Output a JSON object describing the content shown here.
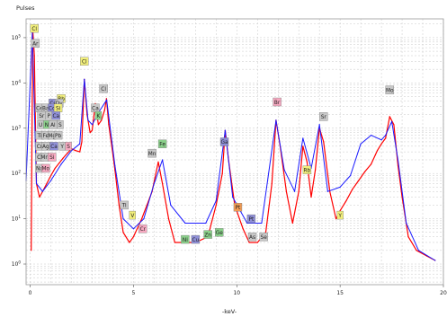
{
  "window": {
    "plot_frame_color": "#9a9a9a",
    "grid_color": "#c8c8c8"
  },
  "chart_data": {
    "type": "line",
    "title": "",
    "ylabel": "Pulses",
    "xlabel": "-keV-",
    "y_scale": "log",
    "xlim": [
      -0.2,
      20
    ],
    "ylim": [
      0.35,
      260000
    ],
    "grid": true,
    "x_ticks": [
      {
        "value": 0,
        "label": "0"
      },
      {
        "value": 5,
        "label": "5"
      },
      {
        "value": 10,
        "label": "10"
      },
      {
        "value": 15,
        "label": "15"
      },
      {
        "value": 20,
        "label": "20"
      }
    ],
    "y_ticks": [
      {
        "value": 1,
        "label": "10^0"
      },
      {
        "value": 10,
        "label": "10^1"
      },
      {
        "value": 100,
        "label": "10^2"
      },
      {
        "value": 1000,
        "label": "10^3"
      },
      {
        "value": 10000,
        "label": "10^4"
      },
      {
        "value": 100000,
        "label": "10^5"
      }
    ],
    "series": [
      {
        "color": "#ff0000",
        "x": [
          0.05,
          0.12,
          0.2,
          0.3,
          0.45,
          0.6,
          0.8,
          1.0,
          1.2,
          1.4,
          1.6,
          1.8,
          2.0,
          2.2,
          2.4,
          2.5,
          2.62,
          2.75,
          2.9,
          3.0,
          3.15,
          3.3,
          3.45,
          3.6,
          3.69,
          3.8,
          3.95,
          4.1,
          4.3,
          4.5,
          4.8,
          5.0,
          5.4,
          5.8,
          5.9,
          6.2,
          6.4,
          6.7,
          7.0,
          7.5,
          8.0,
          8.6,
          9.0,
          9.3,
          9.44,
          9.6,
          9.9,
          10.3,
          10.6,
          11.0,
          11.4,
          11.7,
          11.9,
          12.1,
          12.4,
          12.7,
          13.0,
          13.2,
          13.4,
          13.6,
          13.8,
          14.0,
          14.2,
          14.5,
          14.8,
          15.0,
          15.3,
          15.6,
          15.9,
          16.2,
          16.5,
          16.8,
          17.0,
          17.2,
          17.4,
          17.6,
          17.8,
          18.0,
          18.3,
          18.7,
          19.2,
          19.6
        ],
        "y": [
          2,
          150000,
          40000,
          60,
          30,
          40,
          60,
          90,
          130,
          170,
          220,
          280,
          350,
          320,
          300,
          500,
          12000,
          2000,
          800,
          900,
          3500,
          1200,
          1500,
          2500,
          4500,
          1200,
          400,
          120,
          20,
          5,
          3,
          4,
          10,
          30,
          40,
          180,
          60,
          10,
          3,
          3,
          3,
          4,
          20,
          100,
          900,
          200,
          20,
          6,
          3,
          3,
          5,
          60,
          1500,
          400,
          40,
          8,
          40,
          400,
          180,
          30,
          120,
          1000,
          500,
          40,
          10,
          15,
          25,
          45,
          70,
          110,
          160,
          320,
          450,
          600,
          1800,
          1200,
          150,
          30,
          4,
          2,
          1.5,
          1.2
        ]
      },
      {
        "color": "#1a1aff",
        "x": [
          -0.2,
          0.1,
          0.3,
          0.6,
          1.0,
          1.5,
          2.0,
          2.4,
          2.62,
          2.8,
          3.0,
          3.3,
          3.7,
          4.1,
          4.5,
          5.0,
          5.5,
          6.0,
          6.4,
          6.8,
          7.5,
          8.5,
          9.0,
          9.44,
          9.8,
          10.5,
          11.2,
          11.9,
          12.3,
          12.8,
          13.2,
          13.6,
          14.0,
          14.4,
          15.0,
          15.5,
          16.0,
          16.5,
          17.0,
          17.2,
          17.5,
          17.8,
          18.2,
          18.8,
          19.6
        ],
        "y": [
          70,
          130000,
          60,
          40,
          70,
          160,
          320,
          450,
          12000,
          1500,
          1200,
          2200,
          4200,
          150,
          10,
          6,
          10,
          60,
          200,
          20,
          8,
          8,
          25,
          900,
          30,
          8,
          8,
          1500,
          120,
          40,
          600,
          130,
          1200,
          40,
          50,
          90,
          450,
          700,
          550,
          700,
          1400,
          200,
          8,
          2,
          1.2
        ]
      }
    ],
    "annotations": [
      {
        "label": "Cl",
        "x": 0.2,
        "y": 160000,
        "color": "#f2ef7a"
      },
      {
        "label": "Ar",
        "x": 0.25,
        "y": 75000,
        "color": "#c8c8c8"
      },
      {
        "label": "Rb",
        "x": 1.5,
        "y": 4500,
        "color": "#f2ef7a"
      },
      {
        "label": "Cs",
        "x": 1.1,
        "y": 3600,
        "color": "#8f8fd8"
      },
      {
        "label": "Dy",
        "x": 1.4,
        "y": 3600,
        "color": "#c8c8c8"
      },
      {
        "label": "Ce",
        "x": 0.45,
        "y": 2800,
        "color": "#c8c8c8"
      },
      {
        "label": "Ba",
        "x": 0.75,
        "y": 2800,
        "color": "#c8c8c8"
      },
      {
        "label": "Co",
        "x": 1.05,
        "y": 2800,
        "color": "#8f8fd8"
      },
      {
        "label": "Si",
        "x": 1.35,
        "y": 2800,
        "color": "#f2ef7a"
      },
      {
        "label": "Sr",
        "x": 0.55,
        "y": 1900,
        "color": "#c8c8c8"
      },
      {
        "label": "P",
        "x": 0.9,
        "y": 1900,
        "color": "#c8c8c8"
      },
      {
        "label": "Ca",
        "x": 1.25,
        "y": 1900,
        "color": "#8f8fd8"
      },
      {
        "label": "U",
        "x": 0.5,
        "y": 1200,
        "color": "#c8c8c8"
      },
      {
        "label": "N",
        "x": 0.8,
        "y": 1200,
        "color": "#8ad08a"
      },
      {
        "label": "Al",
        "x": 1.1,
        "y": 1200,
        "color": "#c8c8c8"
      },
      {
        "label": "S",
        "x": 1.45,
        "y": 1200,
        "color": "#c8c8c8"
      },
      {
        "label": "Ti",
        "x": 0.45,
        "y": 700,
        "color": "#c8c8c8"
      },
      {
        "label": "Fe",
        "x": 0.75,
        "y": 700,
        "color": "#c8c8c8"
      },
      {
        "label": "Mg",
        "x": 1.05,
        "y": 700,
        "color": "#c8c8c8"
      },
      {
        "label": "Pb",
        "x": 1.35,
        "y": 700,
        "color": "#c8c8c8"
      },
      {
        "label": "Cr",
        "x": 0.45,
        "y": 400,
        "color": "#c8c8c8"
      },
      {
        "label": "Ag",
        "x": 0.75,
        "y": 400,
        "color": "#c8c8c8"
      },
      {
        "label": "Ca",
        "x": 1.15,
        "y": 400,
        "color": "#8f8fd8"
      },
      {
        "label": "Y",
        "x": 1.55,
        "y": 400,
        "color": "#c8c8c8"
      },
      {
        "label": "S",
        "x": 1.85,
        "y": 400,
        "color": "#f6a8c0"
      },
      {
        "label": "Cl",
        "x": 0.45,
        "y": 230,
        "color": "#c8c8c8"
      },
      {
        "label": "Mn",
        "x": 0.7,
        "y": 230,
        "color": "#c8c8c8"
      },
      {
        "label": "Si",
        "x": 1.05,
        "y": 230,
        "color": "#f6a8c0"
      },
      {
        "label": "Na",
        "x": 0.45,
        "y": 130,
        "color": "#c8c8c8"
      },
      {
        "label": "Mo",
        "x": 0.75,
        "y": 130,
        "color": "#f6a8c0"
      },
      {
        "label": "Cl",
        "x": 2.62,
        "y": 30000,
        "color": "#f2ef7a"
      },
      {
        "label": "Cl",
        "x": 3.55,
        "y": 7500,
        "color": "#c8c8c8"
      },
      {
        "label": "Ca",
        "x": 3.15,
        "y": 2800,
        "color": "#c8c8c8"
      },
      {
        "label": "K",
        "x": 3.3,
        "y": 1900,
        "color": "#8ad08a"
      },
      {
        "label": "Ti",
        "x": 4.55,
        "y": 20,
        "color": "#c8c8c8"
      },
      {
        "label": "V",
        "x": 4.95,
        "y": 12,
        "color": "#f2ef7a"
      },
      {
        "label": "Cr",
        "x": 5.45,
        "y": 6,
        "color": "#f6a8c0"
      },
      {
        "label": "Mn",
        "x": 5.9,
        "y": 280,
        "color": "#c8c8c8"
      },
      {
        "label": "Fe",
        "x": 6.4,
        "y": 450,
        "color": "#8ad08a"
      },
      {
        "label": "Ni",
        "x": 7.5,
        "y": 3.5,
        "color": "#8ad08a"
      },
      {
        "label": "Cu",
        "x": 8.0,
        "y": 3.5,
        "color": "#8f8fd8"
      },
      {
        "label": "Zn",
        "x": 8.6,
        "y": 4.5,
        "color": "#8ad08a"
      },
      {
        "label": "Ga",
        "x": 9.4,
        "y": 500,
        "color": "#8f8fd8"
      },
      {
        "label": "Ge",
        "x": 9.15,
        "y": 5,
        "color": "#8ad08a"
      },
      {
        "label": "Pt",
        "x": 10.05,
        "y": 18,
        "color": "#f39c54"
      },
      {
        "label": "Pt",
        "x": 10.7,
        "y": 10,
        "color": "#8f8fd8"
      },
      {
        "label": "As",
        "x": 10.75,
        "y": 4,
        "color": "#c8c8c8"
      },
      {
        "label": "Se",
        "x": 11.3,
        "y": 4,
        "color": "#c8c8c8"
      },
      {
        "label": "Br",
        "x": 11.95,
        "y": 3800,
        "color": "#f6a8c0"
      },
      {
        "label": "Rb",
        "x": 13.4,
        "y": 120,
        "color": "#f2ef7a"
      },
      {
        "label": "Sr",
        "x": 14.2,
        "y": 1800,
        "color": "#c8c8c8"
      },
      {
        "label": "Y",
        "x": 15.0,
        "y": 12,
        "color": "#f2ef7a"
      },
      {
        "label": "Mo",
        "x": 17.4,
        "y": 7000,
        "color": "#c8c8c8"
      }
    ]
  }
}
